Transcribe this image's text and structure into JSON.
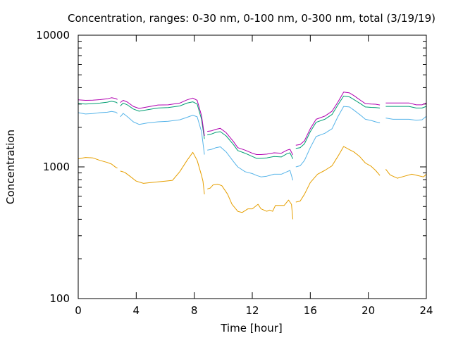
{
  "chart_data": {
    "type": "line",
    "title": "Concentration, ranges: 0-30 nm, 0-100 nm, 0-300 nm, total (3/19/19)",
    "xlabel": "Time [hour]",
    "ylabel": "Concentration",
    "xlim": [
      0,
      24
    ],
    "ylim": [
      100,
      10000
    ],
    "yscale": "log",
    "grid": false,
    "legend": "none",
    "xticks": [
      0,
      4,
      8,
      12,
      16,
      20,
      24
    ],
    "xtick_labels": [
      "0",
      "4",
      "8",
      "12",
      "16",
      "20",
      "24"
    ],
    "yticks": [
      100,
      1000,
      10000
    ],
    "ytick_labels": [
      "100",
      "1000",
      "10000"
    ],
    "series": [
      {
        "color": "#e69f00",
        "segments": [
          [
            [
              0,
              1150
            ],
            [
              0.5,
              1180
            ],
            [
              1,
              1170
            ],
            [
              1.5,
              1120
            ],
            [
              2,
              1080
            ],
            [
              2.3,
              1050
            ],
            [
              2.6,
              990
            ],
            [
              2.7,
              980
            ]
          ],
          [
            [
              2.9,
              930
            ],
            [
              3.2,
              910
            ],
            [
              3.5,
              860
            ],
            [
              4,
              780
            ],
            [
              4.5,
              750
            ],
            [
              5,
              760
            ],
            [
              5.5,
              770
            ],
            [
              6,
              780
            ],
            [
              6.5,
              790
            ],
            [
              7,
              920
            ],
            [
              7.5,
              1120
            ],
            [
              7.9,
              1290
            ],
            [
              8.2,
              1120
            ],
            [
              8.5,
              860
            ],
            [
              8.6,
              780
            ],
            [
              8.7,
              620
            ]
          ],
          [
            [
              8.9,
              680
            ],
            [
              9.1,
              690
            ],
            [
              9.3,
              730
            ],
            [
              9.6,
              740
            ],
            [
              9.9,
              720
            ],
            [
              10.3,
              620
            ],
            [
              10.6,
              520
            ],
            [
              11,
              460
            ],
            [
              11.3,
              450
            ],
            [
              11.7,
              480
            ],
            [
              12,
              480
            ],
            [
              12.4,
              520
            ],
            [
              12.6,
              480
            ],
            [
              13,
              460
            ],
            [
              13.2,
              470
            ],
            [
              13.4,
              460
            ],
            [
              13.6,
              510
            ],
            [
              13.9,
              510
            ],
            [
              14.2,
              510
            ],
            [
              14.5,
              560
            ],
            [
              14.7,
              520
            ],
            [
              14.8,
              400
            ]
          ],
          [
            [
              15,
              540
            ],
            [
              15.3,
              550
            ],
            [
              15.6,
              620
            ],
            [
              16,
              760
            ],
            [
              16.5,
              880
            ],
            [
              17,
              940
            ],
            [
              17.5,
              1020
            ],
            [
              17.9,
              1200
            ],
            [
              18.3,
              1430
            ],
            [
              18.7,
              1350
            ],
            [
              19,
              1300
            ],
            [
              19.4,
              1200
            ],
            [
              19.8,
              1070
            ],
            [
              20.2,
              1010
            ],
            [
              20.5,
              940
            ],
            [
              20.8,
              860
            ]
          ],
          [
            [
              21.2,
              960
            ],
            [
              21.5,
              870
            ],
            [
              22,
              820
            ],
            [
              22.5,
              850
            ],
            [
              23,
              880
            ],
            [
              23.4,
              860
            ],
            [
              23.8,
              840
            ],
            [
              24,
              880
            ]
          ]
        ]
      },
      {
        "color": "#56b4e9",
        "segments": [
          [
            [
              0,
              2580
            ],
            [
              0.5,
              2520
            ],
            [
              1,
              2540
            ],
            [
              1.5,
              2580
            ],
            [
              2,
              2600
            ],
            [
              2.3,
              2640
            ],
            [
              2.6,
              2600
            ],
            [
              2.7,
              2550
            ]
          ],
          [
            [
              2.9,
              2400
            ],
            [
              3.1,
              2550
            ],
            [
              3.4,
              2400
            ],
            [
              3.8,
              2200
            ],
            [
              4.2,
              2100
            ],
            [
              4.8,
              2160
            ],
            [
              5.5,
              2200
            ],
            [
              6.2,
              2220
            ],
            [
              7,
              2280
            ],
            [
              7.5,
              2380
            ],
            [
              7.9,
              2470
            ],
            [
              8.2,
              2400
            ],
            [
              8.5,
              1850
            ],
            [
              8.7,
              1240
            ]
          ],
          [
            [
              8.9,
              1340
            ],
            [
              9.2,
              1360
            ],
            [
              9.5,
              1400
            ],
            [
              9.8,
              1420
            ],
            [
              10.2,
              1300
            ],
            [
              10.7,
              1100
            ],
            [
              11,
              1000
            ],
            [
              11.5,
              920
            ],
            [
              12,
              890
            ],
            [
              12.3,
              860
            ],
            [
              12.6,
              840
            ],
            [
              13,
              850
            ],
            [
              13.5,
              880
            ],
            [
              14,
              880
            ],
            [
              14.4,
              920
            ],
            [
              14.6,
              940
            ],
            [
              14.8,
              790
            ]
          ],
          [
            [
              15,
              1000
            ],
            [
              15.3,
              1020
            ],
            [
              15.6,
              1120
            ],
            [
              16,
              1400
            ],
            [
              16.4,
              1700
            ],
            [
              17,
              1800
            ],
            [
              17.5,
              1950
            ],
            [
              17.9,
              2400
            ],
            [
              18.3,
              2880
            ],
            [
              18.7,
              2850
            ],
            [
              19,
              2700
            ],
            [
              19.5,
              2450
            ],
            [
              19.8,
              2300
            ],
            [
              20.2,
              2250
            ],
            [
              20.5,
              2200
            ],
            [
              20.8,
              2160
            ]
          ],
          [
            [
              21.2,
              2350
            ],
            [
              21.7,
              2300
            ],
            [
              22.3,
              2300
            ],
            [
              22.8,
              2300
            ],
            [
              23.3,
              2260
            ],
            [
              23.7,
              2280
            ],
            [
              24,
              2420
            ]
          ]
        ]
      },
      {
        "color": "#009e73",
        "segments": [
          [
            [
              0,
              3030
            ],
            [
              0.5,
              3000
            ],
            [
              1,
              3020
            ],
            [
              1.5,
              3050
            ],
            [
              2,
              3100
            ],
            [
              2.3,
              3150
            ],
            [
              2.6,
              3100
            ],
            [
              2.7,
              3050
            ]
          ],
          [
            [
              2.9,
              2900
            ],
            [
              3.1,
              3050
            ],
            [
              3.4,
              2950
            ],
            [
              3.8,
              2750
            ],
            [
              4.2,
              2650
            ],
            [
              4.8,
              2720
            ],
            [
              5.5,
              2800
            ],
            [
              6.2,
              2820
            ],
            [
              7,
              2900
            ],
            [
              7.5,
              3050
            ],
            [
              7.9,
              3120
            ],
            [
              8.2,
              3000
            ],
            [
              8.5,
              2300
            ],
            [
              8.7,
              1630
            ]
          ],
          [
            [
              8.9,
              1750
            ],
            [
              9.2,
              1780
            ],
            [
              9.5,
              1830
            ],
            [
              9.8,
              1850
            ],
            [
              10.2,
              1720
            ],
            [
              10.7,
              1480
            ],
            [
              11,
              1330
            ],
            [
              11.5,
              1270
            ],
            [
              12,
              1200
            ],
            [
              12.3,
              1160
            ],
            [
              12.6,
              1160
            ],
            [
              13,
              1170
            ],
            [
              13.5,
              1200
            ],
            [
              14,
              1190
            ],
            [
              14.4,
              1260
            ],
            [
              14.6,
              1280
            ],
            [
              14.8,
              1150
            ]
          ],
          [
            [
              15,
              1380
            ],
            [
              15.3,
              1400
            ],
            [
              15.6,
              1500
            ],
            [
              16,
              1850
            ],
            [
              16.4,
              2180
            ],
            [
              17,
              2300
            ],
            [
              17.5,
              2500
            ],
            [
              17.9,
              2950
            ],
            [
              18.3,
              3450
            ],
            [
              18.7,
              3400
            ],
            [
              19,
              3250
            ],
            [
              19.5,
              3000
            ],
            [
              19.8,
              2850
            ],
            [
              20.2,
              2830
            ],
            [
              20.5,
              2820
            ],
            [
              20.8,
              2800
            ]
          ],
          [
            [
              21.2,
              2880
            ],
            [
              21.7,
              2880
            ],
            [
              22.3,
              2880
            ],
            [
              22.8,
              2880
            ],
            [
              23.3,
              2800
            ],
            [
              23.7,
              2800
            ],
            [
              24,
              2880
            ]
          ]
        ]
      },
      {
        "color": "#b000b0",
        "segments": [
          [
            [
              0,
              3230
            ],
            [
              0.5,
              3200
            ],
            [
              1,
              3210
            ],
            [
              1.5,
              3240
            ],
            [
              2,
              3290
            ],
            [
              2.3,
              3350
            ],
            [
              2.6,
              3300
            ],
            [
              2.7,
              3250
            ]
          ],
          [
            [
              2.9,
              3080
            ],
            [
              3.1,
              3200
            ],
            [
              3.4,
              3100
            ],
            [
              3.8,
              2880
            ],
            [
              4.2,
              2780
            ],
            [
              4.8,
              2860
            ],
            [
              5.5,
              2950
            ],
            [
              6.2,
              2960
            ],
            [
              7,
              3050
            ],
            [
              7.5,
              3230
            ],
            [
              7.9,
              3330
            ],
            [
              8.2,
              3200
            ],
            [
              8.5,
              2450
            ],
            [
              8.7,
              1720
            ]
          ],
          [
            [
              8.9,
              1860
            ],
            [
              9.2,
              1880
            ],
            [
              9.5,
              1930
            ],
            [
              9.8,
              1960
            ],
            [
              10.2,
              1820
            ],
            [
              10.7,
              1560
            ],
            [
              11,
              1400
            ],
            [
              11.5,
              1340
            ],
            [
              12,
              1270
            ],
            [
              12.3,
              1240
            ],
            [
              12.6,
              1240
            ],
            [
              13,
              1250
            ],
            [
              13.5,
              1280
            ],
            [
              14,
              1270
            ],
            [
              14.4,
              1340
            ],
            [
              14.6,
              1360
            ],
            [
              14.8,
              1230
            ]
          ],
          [
            [
              15,
              1460
            ],
            [
              15.3,
              1480
            ],
            [
              15.6,
              1580
            ],
            [
              16,
              1950
            ],
            [
              16.4,
              2300
            ],
            [
              17,
              2430
            ],
            [
              17.5,
              2650
            ],
            [
              17.9,
              3100
            ],
            [
              18.3,
              3700
            ],
            [
              18.7,
              3650
            ],
            [
              19,
              3480
            ],
            [
              19.5,
              3180
            ],
            [
              19.8,
              3020
            ],
            [
              20.2,
              3000
            ],
            [
              20.5,
              2990
            ],
            [
              20.8,
              2950
            ]
          ],
          [
            [
              21.2,
              3060
            ],
            [
              21.7,
              3060
            ],
            [
              22.3,
              3060
            ],
            [
              22.8,
              3060
            ],
            [
              23.3,
              2960
            ],
            [
              23.7,
              2960
            ],
            [
              24,
              3060
            ]
          ]
        ]
      }
    ]
  }
}
